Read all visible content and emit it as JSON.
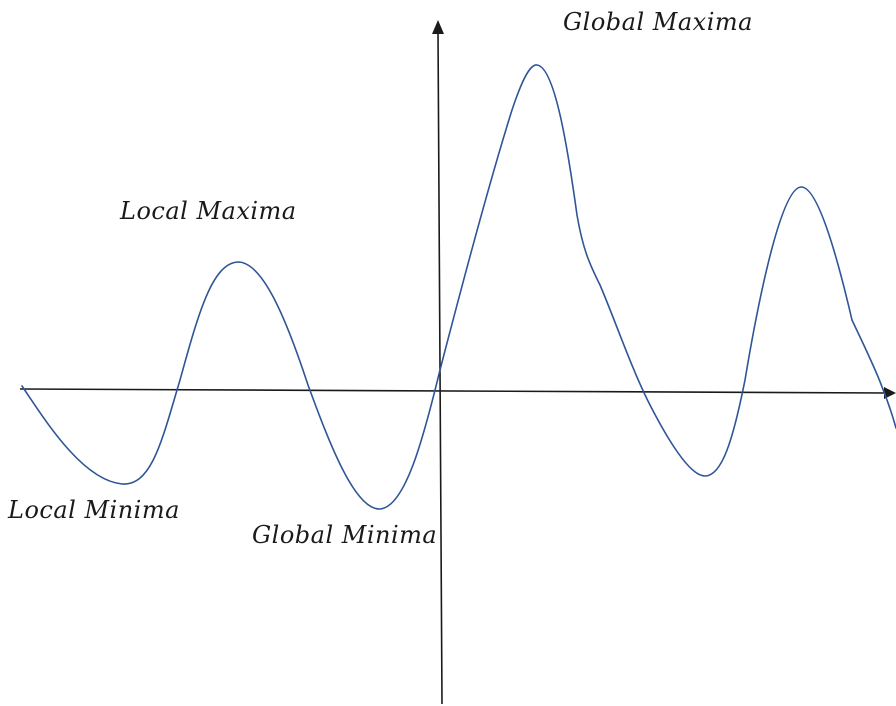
{
  "labels": {
    "global_maxima": "Global Maxima",
    "local_maxima": "Local Maxima",
    "local_minima": "Local Minima",
    "global_minima": "Global Minima"
  },
  "colors": {
    "curve": "#2f5597",
    "axes": "#1a1a1a",
    "text": "#1a1a1a",
    "background": "#ffffff"
  }
}
